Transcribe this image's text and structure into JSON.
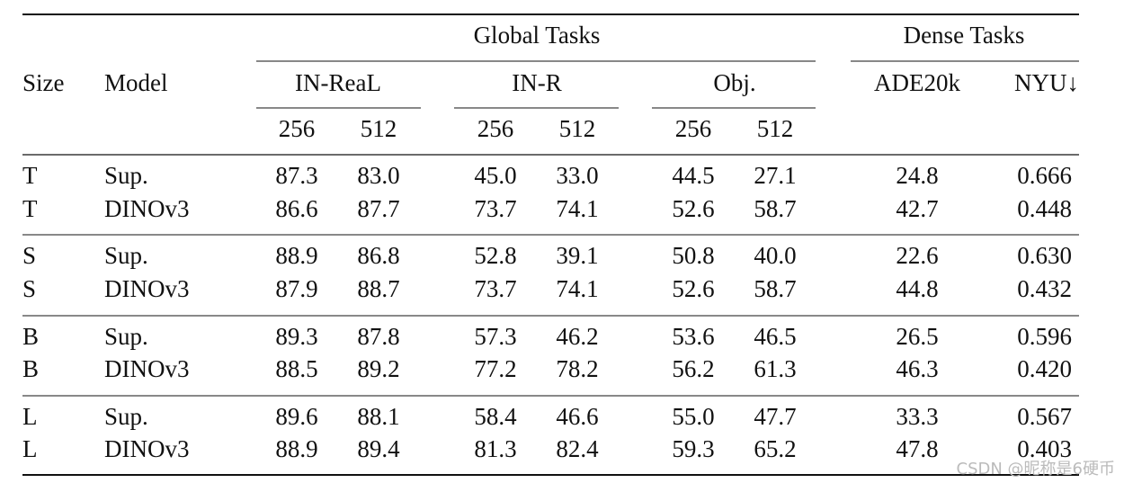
{
  "table": {
    "header": {
      "groups": [
        "Global Tasks",
        "Dense Tasks"
      ],
      "size": "Size",
      "model": "Model",
      "subgroups": [
        "IN-ReaL",
        "IN-R",
        "Obj."
      ],
      "dense": [
        "ADE20k",
        "NYU↓"
      ],
      "resolutions": [
        "256",
        "512",
        "256",
        "512",
        "256",
        "512"
      ]
    },
    "rows": [
      {
        "size": "T",
        "model": "Sup.",
        "cells": [
          "87.3",
          "83.0",
          "45.0",
          "33.0",
          "44.5",
          "27.1",
          "24.8",
          "0.666"
        ]
      },
      {
        "size": "T",
        "model": "DINOv3",
        "cells": [
          "86.6",
          "87.7",
          "73.7",
          "74.1",
          "52.6",
          "58.7",
          "42.7",
          "0.448"
        ]
      },
      {
        "size": "S",
        "model": "Sup.",
        "cells": [
          "88.9",
          "86.8",
          "52.8",
          "39.1",
          "50.8",
          "40.0",
          "22.6",
          "0.630"
        ]
      },
      {
        "size": "S",
        "model": "DINOv3",
        "cells": [
          "87.9",
          "88.7",
          "73.7",
          "74.1",
          "52.6",
          "58.7",
          "44.8",
          "0.432"
        ]
      },
      {
        "size": "B",
        "model": "Sup.",
        "cells": [
          "89.3",
          "87.8",
          "57.3",
          "46.2",
          "53.6",
          "46.5",
          "26.5",
          "0.596"
        ]
      },
      {
        "size": "B",
        "model": "DINOv3",
        "cells": [
          "88.5",
          "89.2",
          "77.2",
          "78.2",
          "56.2",
          "61.3",
          "46.3",
          "0.420"
        ]
      },
      {
        "size": "L",
        "model": "Sup.",
        "cells": [
          "89.6",
          "88.1",
          "58.4",
          "46.6",
          "55.0",
          "47.7",
          "33.3",
          "0.567"
        ]
      },
      {
        "size": "L",
        "model": "DINOv3",
        "cells": [
          "88.9",
          "89.4",
          "81.3",
          "82.4",
          "59.3",
          "65.2",
          "47.8",
          "0.403"
        ]
      }
    ]
  },
  "watermark": "CSDN @昵称是6硬币"
}
